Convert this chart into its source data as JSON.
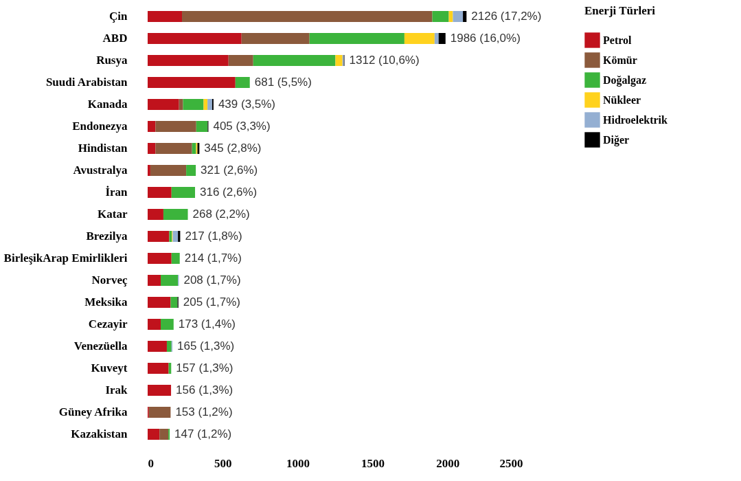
{
  "chart_data": {
    "type": "bar",
    "orientation": "horizontal",
    "stacked": true,
    "legend": "right",
    "legend_title": "Enerji Türleri",
    "grid": false,
    "categories": [
      "Çin",
      "ABD",
      "Rusya",
      "Suudi Arabistan",
      "Kanada",
      "Endonezya",
      "Hindistan",
      "Avustralya",
      "İran",
      "Katar",
      "Brezilya",
      "BirleşikArap Emirlikleri",
      "Norveç",
      "Meksika",
      "Cezayir",
      "Venezüella",
      "Kuveyt",
      "Irak",
      "Güney Afrika",
      "Kazakistan"
    ],
    "series": [
      {
        "name": "Petrol",
        "color": "#c0121c",
        "values": [
          229,
          626,
          539,
          585,
          209,
          52,
          52,
          18,
          159,
          105,
          144,
          159,
          87,
          153,
          87,
          128,
          140,
          156,
          8,
          79
        ]
      },
      {
        "name": "Kömür",
        "color": "#8b5a3c",
        "values": [
          1669,
          453,
          165,
          null,
          27,
          272,
          244,
          239,
          null,
          null,
          null,
          null,
          null,
          null,
          null,
          null,
          null,
          null,
          145,
          59
        ]
      },
      {
        "name": "Doğalgaz",
        "color": "#3cb43c",
        "values": [
          110,
          633,
          548,
          96,
          137,
          76,
          27,
          64,
          157,
          163,
          18,
          55,
          115,
          46,
          86,
          31,
          17,
          null,
          null,
          9
        ]
      },
      {
        "name": "Nükleer",
        "color": "#ffd21e",
        "values": [
          27,
          201,
          47,
          null,
          26,
          null,
          9,
          null,
          null,
          null,
          5,
          null,
          null,
          null,
          null,
          null,
          null,
          null,
          null,
          null
        ]
      },
      {
        "name": "Hidroelektrik",
        "color": "#94afd2",
        "values": [
          67,
          27,
          9,
          null,
          31,
          null,
          null,
          null,
          null,
          null,
          35,
          null,
          6,
          null,
          null,
          6,
          null,
          null,
          null,
          null
        ]
      },
      {
        "name": "Diğer",
        "color": "#000000",
        "values": [
          24,
          46,
          4,
          null,
          9,
          5,
          13,
          null,
          null,
          null,
          15,
          null,
          null,
          6,
          null,
          null,
          null,
          null,
          null,
          null
        ]
      }
    ],
    "totals": [
      "2126 (17,2%)",
      "1986 (16,0%)",
      "1312 (10,6%)",
      "681 (5,5%)",
      "439 (3,5%)",
      "405 (3,3%)",
      "345 (2,8%)",
      "321 (2,6%)",
      "316 (2,6%)",
      "268 (2,2%)",
      "217 (1,8%)",
      "214 (1,7%)",
      "208 (1,7%)",
      "205 (1,7%)",
      "173 (1,4%)",
      "165 (1,3%)",
      "157 (1,3%)",
      "156 (1,3%)",
      "153 (1,2%)",
      "147 (1,2%)"
    ],
    "xlim": [
      0,
      2500
    ],
    "xticks": [
      0,
      500,
      1000,
      1500,
      2000,
      2500
    ]
  }
}
